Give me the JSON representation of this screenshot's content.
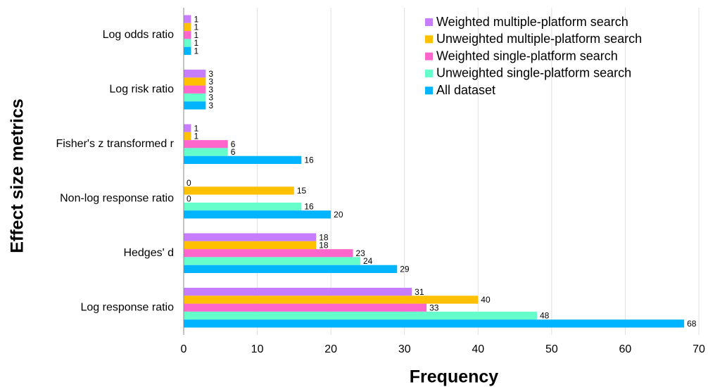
{
  "chart_data": {
    "type": "barh",
    "xlabel": "Frequency",
    "ylabel": "Effect size metrics",
    "categories": [
      "Log odds ratio",
      "Log risk ratio",
      "Fisher's z transformed r",
      "Non-log response ratio",
      "Hedges' d",
      "Log response ratio"
    ],
    "series": [
      {
        "name": "Weighted multiple-platform search",
        "color": "#c77dff",
        "values": [
          1,
          3,
          1,
          0,
          18,
          31
        ]
      },
      {
        "name": "Unweighted multiple-platform search",
        "color": "#ffc000",
        "values": [
          1,
          3,
          1,
          15,
          18,
          40
        ]
      },
      {
        "name": "Weighted single-platform search",
        "color": "#ff66cc",
        "values": [
          1,
          3,
          6,
          0,
          23,
          33
        ]
      },
      {
        "name": "Unweighted single-platform search",
        "color": "#66ffcc",
        "values": [
          1,
          3,
          6,
          16,
          24,
          48
        ]
      },
      {
        "name": "All dataset",
        "color": "#00b4ff",
        "values": [
          1,
          3,
          16,
          20,
          29,
          68
        ]
      }
    ],
    "xlim": [
      0,
      70
    ],
    "xticks": [
      0,
      10,
      20,
      30,
      40,
      50,
      60,
      70
    ],
    "grid": true,
    "legend": "top-right"
  }
}
